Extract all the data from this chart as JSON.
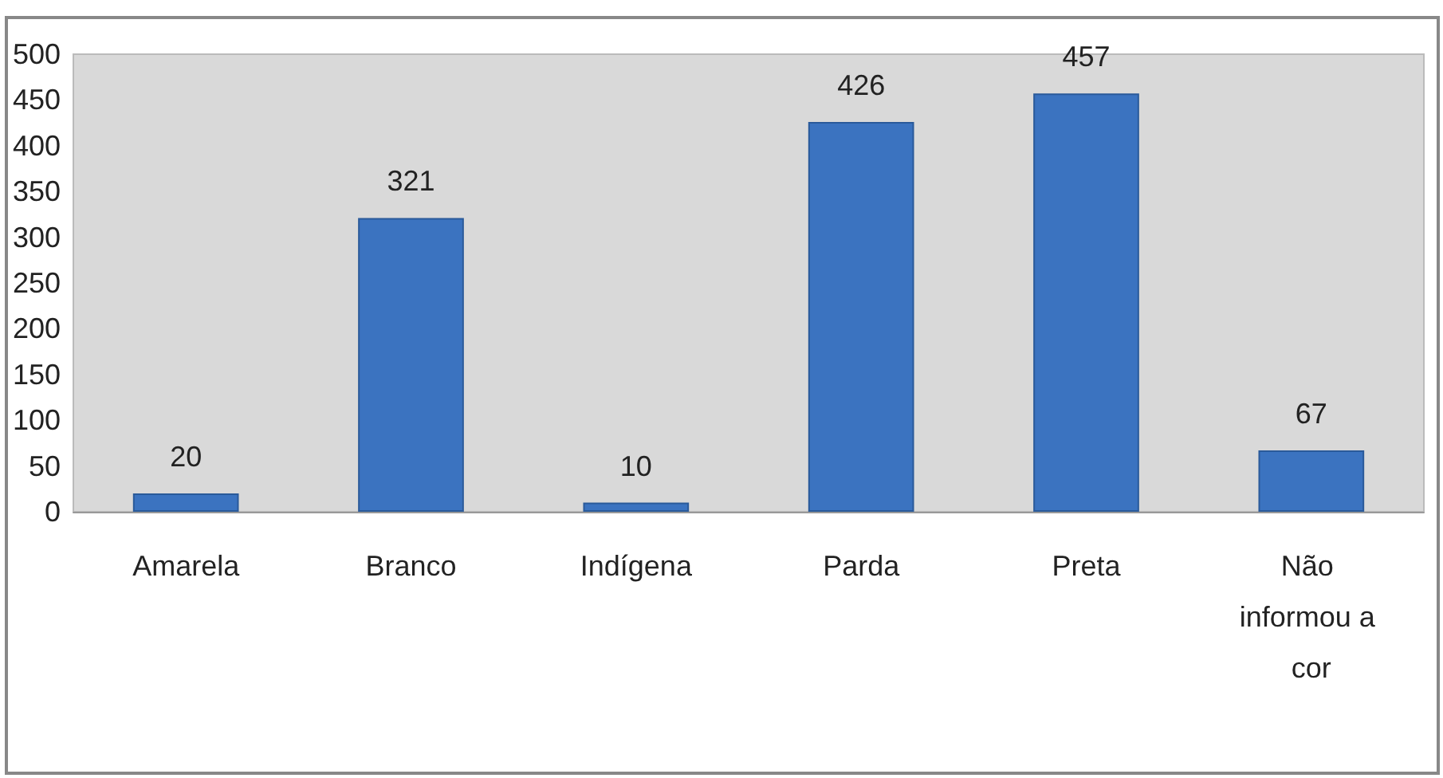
{
  "chart_data": {
    "type": "bar",
    "categories": [
      "Amarela",
      "Branco",
      "Indígena",
      "Parda",
      "Preta",
      "Não informou a cor"
    ],
    "values": [
      20,
      321,
      10,
      426,
      457,
      67
    ],
    "color": "#3b73c0",
    "ylim": [
      0,
      500
    ],
    "yticks": [
      0,
      50,
      100,
      150,
      200,
      250,
      300,
      350,
      400,
      450,
      500
    ],
    "grid": false,
    "data_labels": true
  }
}
